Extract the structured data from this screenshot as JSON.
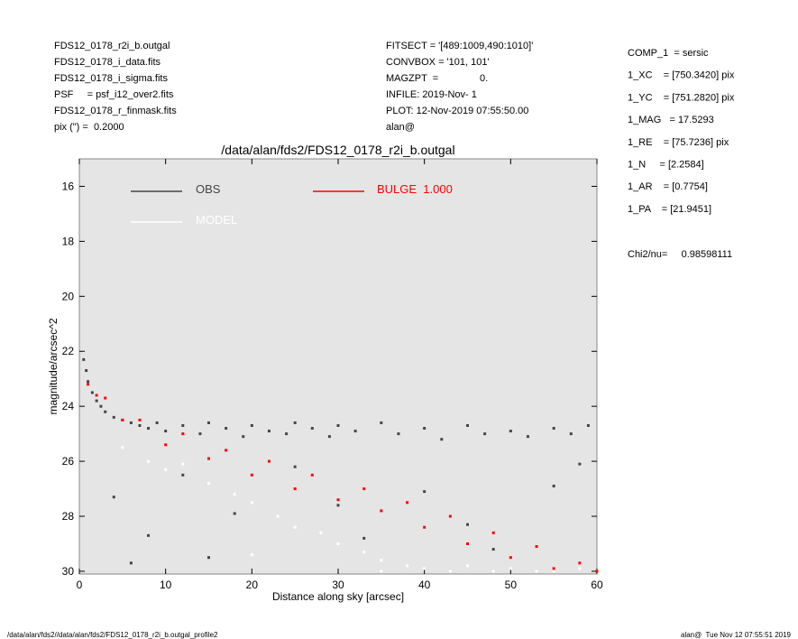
{
  "chart_data": {
    "type": "scatter",
    "title": "/data/alan/fds2/FDS12_0178_r2i_b.outgal",
    "x_label": "Distance along sky [arcsec]",
    "y_label": "magnitude/arcsec^2",
    "xlim": [
      0,
      60
    ],
    "xticks": [
      0,
      10,
      20,
      30,
      40,
      50,
      60
    ],
    "ylim": [
      30.1,
      15
    ],
    "yticks": [
      16,
      18,
      20,
      22,
      24,
      26,
      28,
      30
    ],
    "background": "#e5e5e5",
    "series": [
      {
        "name": "OBS",
        "color": "#444444",
        "x": [
          0.5,
          0.8,
          1,
          1.5,
          2,
          2.5,
          3,
          4,
          5,
          6,
          7,
          8,
          9,
          10,
          12,
          14,
          15,
          17,
          19,
          20,
          22,
          24,
          25,
          27,
          29,
          30,
          32,
          35,
          37,
          40,
          42,
          45,
          47,
          50,
          52,
          55,
          57,
          59,
          4,
          8,
          12,
          18,
          25,
          33,
          40,
          48,
          55,
          6,
          15,
          30,
          45,
          58
        ],
        "values": [
          22.3,
          22.7,
          23.1,
          23.5,
          23.8,
          24,
          24.2,
          24.4,
          24.5,
          24.6,
          24.7,
          24.8,
          24.6,
          24.9,
          24.7,
          25,
          24.6,
          24.8,
          25.1,
          24.7,
          24.9,
          25,
          24.6,
          24.8,
          25.1,
          24.7,
          24.9,
          24.6,
          25,
          24.8,
          25.2,
          24.7,
          25,
          24.9,
          25.1,
          24.8,
          25,
          24.7,
          27.3,
          28.7,
          26.5,
          27.9,
          26.2,
          28.8,
          27.1,
          29.2,
          26.9,
          29.7,
          29.5,
          27.6,
          28.3,
          26.1
        ]
      },
      {
        "name": "MODEL",
        "color": "#ffffff",
        "x": [
          5,
          8,
          10,
          12,
          15,
          18,
          20,
          23,
          25,
          28,
          30,
          33,
          35,
          38,
          40,
          43,
          45,
          48,
          50,
          53,
          55,
          58,
          60,
          20,
          35
        ],
        "values": [
          25.5,
          26,
          26.3,
          26.1,
          26.8,
          27.2,
          27.5,
          28,
          28.4,
          28.6,
          29,
          29.3,
          29.6,
          29.8,
          29.9,
          30,
          29.8,
          30,
          29.9,
          30,
          30,
          29.9,
          30,
          29.4,
          30
        ]
      },
      {
        "name": "BULGE  1.000",
        "color": "#ff0000",
        "x": [
          1,
          2,
          3,
          5,
          7,
          10,
          12,
          15,
          17,
          20,
          22,
          25,
          27,
          30,
          33,
          35,
          38,
          40,
          43,
          45,
          48,
          50,
          53,
          55,
          58,
          60
        ],
        "values": [
          23.2,
          23.6,
          23.7,
          24.5,
          24.5,
          25.4,
          25,
          25.9,
          25.6,
          26.5,
          26,
          27,
          26.5,
          27.4,
          27,
          27.8,
          27.5,
          28.4,
          28,
          29,
          28.6,
          29.5,
          29.1,
          29.9,
          29.7,
          30
        ]
      }
    ],
    "info_left": [
      "FDS12_0178_r2i_b.outgal",
      "FDS12_0178_i_data.fits",
      "FDS12_0178_i_sigma.fits",
      "PSF     = psf_i12_over2.fits",
      "FDS12_0178_r_finmask.fits",
      "pix (\") =  0.2000"
    ],
    "info_middle": [
      "FITSECT = '[489:1009,490:1010]'",
      "CONVBOX = '101, 101'",
      "MAGZPT  =               0.",
      "INFILE: 2019-Nov- 1",
      "PLOT: 12-Nov-2019 07:55:50.00",
      "alan@"
    ],
    "info_right": [
      "COMP_1  = sersic",
      "1_XC    = [750.3420] pix",
      "1_YC    = [751.2820] pix",
      "1_MAG   = 17.5293",
      "1_RE    = [75.7236] pix",
      "1_N     = [2.2584]",
      "1_AR    = [0.7754]",
      "1_PA    = [21.9451]"
    ],
    "chi2": "Chi2/nu=     0.98598111",
    "footer_left": "/data/alan/fds2//data/alan/fds2/FDS12_0178_r2i_b.outgal_profile2",
    "footer_right": "alan@  Tue Nov 12 07:55:51 2019"
  }
}
